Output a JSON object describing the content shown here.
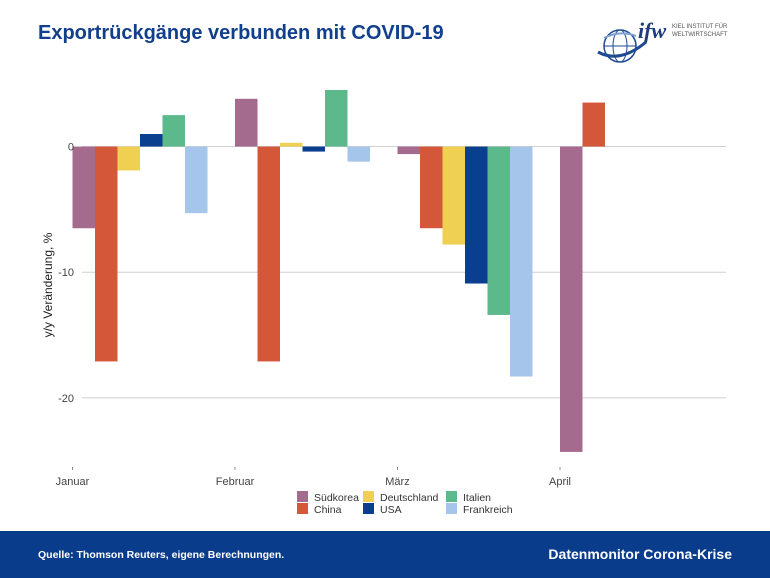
{
  "header": {
    "title": "Exportrückgänge verbunden mit COVID-19",
    "logo_text": "ifw",
    "logo_subtitle_1": "KIEL INSTITUT FÜR",
    "logo_subtitle_2": "WELTWIRTSCHAFT"
  },
  "footer": {
    "source": "Quelle: Thomson Reuters, eigene Berechnungen.",
    "brand": "Datenmonitor Corona-Krise",
    "color": "#0a3c8c"
  },
  "chart_data": {
    "type": "bar",
    "title": "Exportrückgänge verbunden mit COVID-19",
    "xlabel": "",
    "ylabel": "y/y Veränderung, %",
    "categories": [
      "Januar",
      "Februar",
      "März",
      "April"
    ],
    "ylim": [
      -25.5,
      4.5
    ],
    "yticks": [
      0,
      -10,
      -20
    ],
    "grid": true,
    "legend_position": "bottom",
    "series": [
      {
        "name": "Südkorea",
        "color": "#a56b8e",
        "values": [
          -6.5,
          3.8,
          -0.6,
          -24.3
        ]
      },
      {
        "name": "China",
        "color": "#d4573a",
        "values": [
          -17.1,
          -17.1,
          -6.5,
          3.5
        ]
      },
      {
        "name": "Deutschland",
        "color": "#efd052",
        "values": [
          -1.9,
          0.3,
          -7.8,
          null
        ]
      },
      {
        "name": "USA",
        "color": "#0a3f8f",
        "values": [
          1.0,
          -0.4,
          -10.9,
          null
        ]
      },
      {
        "name": "Italien",
        "color": "#5bb98c",
        "values": [
          2.5,
          4.5,
          -13.4,
          null
        ]
      },
      {
        "name": "Frankreich",
        "color": "#a5c5ea",
        "values": [
          -5.3,
          -1.2,
          -18.3,
          null
        ]
      }
    ]
  }
}
